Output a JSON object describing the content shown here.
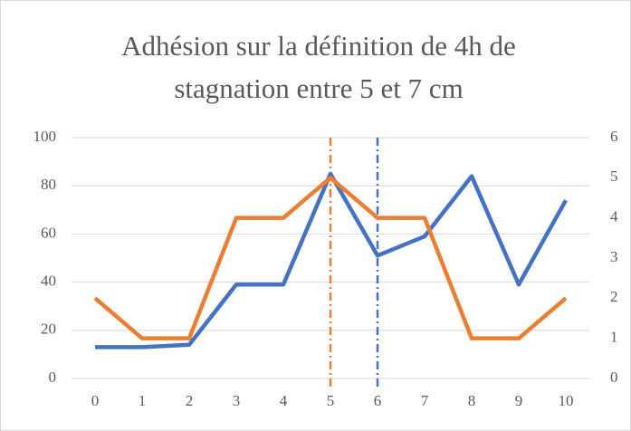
{
  "chart_data": {
    "type": "line",
    "title": [
      "Adhésion sur la définition de 4h de",
      "stagnation entre 5 et 7 cm"
    ],
    "x": [
      0,
      1,
      2,
      3,
      4,
      5,
      6,
      7,
      8,
      9,
      10
    ],
    "xlim": [
      -0.5,
      10.5
    ],
    "xticks": [
      0,
      1,
      2,
      3,
      4,
      5,
      6,
      7,
      8,
      9,
      10
    ],
    "ylim": [
      0,
      100
    ],
    "yticks": [
      0,
      20,
      40,
      60,
      80,
      100
    ],
    "y2lim": [
      0,
      6
    ],
    "y2ticks": [
      0,
      1,
      2,
      3,
      4,
      5,
      6
    ],
    "grid": true,
    "series": [
      {
        "color": "#4472c4",
        "values": [
          13,
          13,
          14,
          39,
          39,
          85,
          51,
          59,
          84,
          39,
          74
        ]
      },
      {
        "color": "#ed7d31",
        "axis": "y2",
        "values": [
          2,
          1,
          1,
          4,
          4,
          5,
          4,
          4,
          1,
          1,
          2
        ]
      }
    ],
    "vlines": [
      {
        "x": 5,
        "color": "#ed7d31"
      },
      {
        "x": 6,
        "color": "#4472c4"
      }
    ]
  }
}
